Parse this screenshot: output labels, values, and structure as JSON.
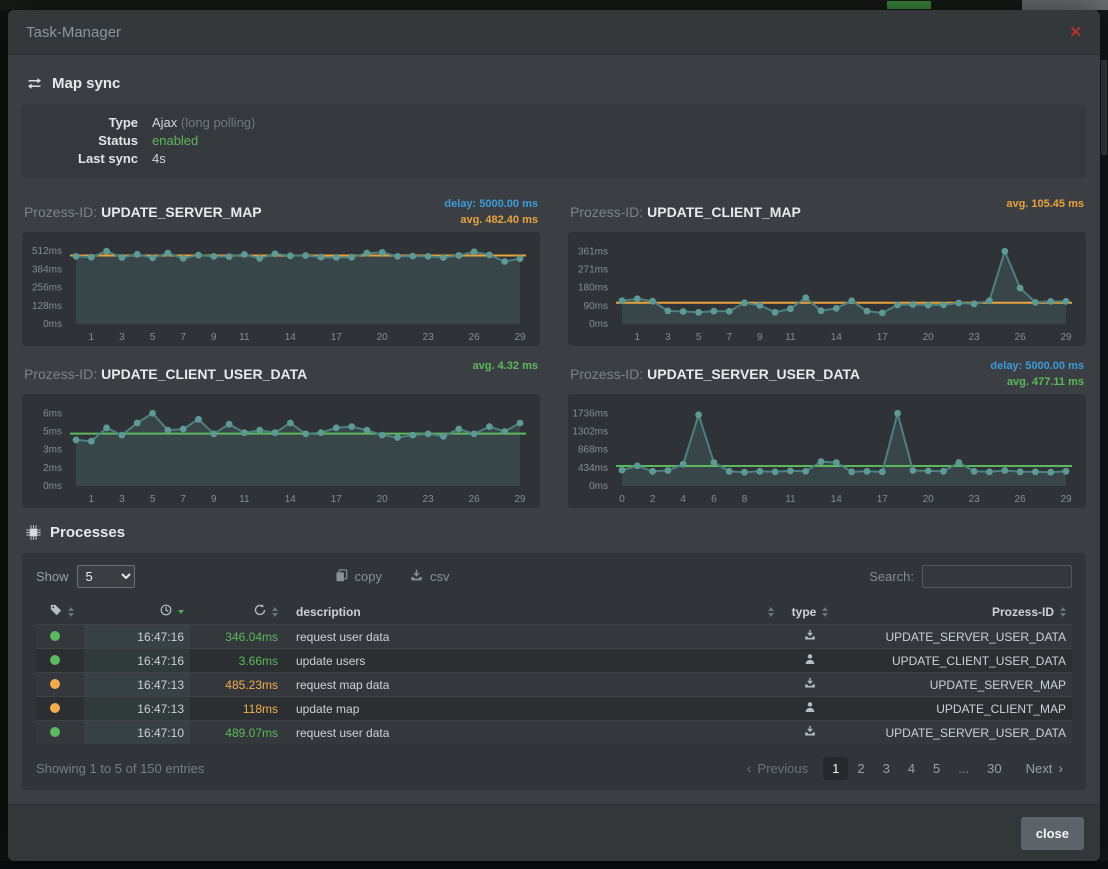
{
  "modal": {
    "title": "Task-Manager",
    "close_icon": "✕",
    "footer_close_label": "close"
  },
  "map_sync": {
    "heading": "Map sync",
    "type_label": "Type",
    "type_value": "Ajax",
    "type_note": "(long polling)",
    "status_label": "Status",
    "status_value": "enabled",
    "last_sync_label": "Last sync",
    "last_sync_value": "4s"
  },
  "chart_data": [
    {
      "type": "area",
      "title_prefix": "Prozess-ID:",
      "title": "UPDATE_SERVER_MAP",
      "delay_label": "delay: 5000.00 ms",
      "avg_label": "avg. 482.40 ms",
      "avg_value": 482.4,
      "avg_color": "#e8a33d",
      "ylim": [
        0,
        563
      ],
      "yticks": [
        {
          "v": 0,
          "label": "0ms"
        },
        {
          "v": 128,
          "label": "128ms"
        },
        {
          "v": 256,
          "label": "256ms"
        },
        {
          "v": 384,
          "label": "384ms"
        },
        {
          "v": 512,
          "label": "512ms"
        }
      ],
      "xticks": [
        1,
        3,
        5,
        7,
        9,
        11,
        14,
        17,
        20,
        23,
        26,
        29
      ],
      "values": [
        476,
        470,
        512,
        468,
        490,
        466,
        498,
        462,
        484,
        476,
        474,
        490,
        462,
        494,
        480,
        482,
        470,
        468,
        470,
        498,
        504,
        476,
        478,
        476,
        468,
        482,
        508,
        486,
        440,
        460
      ]
    },
    {
      "type": "area",
      "title_prefix": "Prozess-ID:",
      "title": "UPDATE_CLIENT_MAP",
      "delay_label": "",
      "avg_label": "avg. 105.45 ms",
      "avg_value": 105.45,
      "avg_color": "#e8a33d",
      "ylim": [
        0,
        397
      ],
      "yticks": [
        {
          "v": 0,
          "label": "0ms"
        },
        {
          "v": 90,
          "label": "90ms"
        },
        {
          "v": 180,
          "label": "180ms"
        },
        {
          "v": 271,
          "label": "271ms"
        },
        {
          "v": 361,
          "label": "361ms"
        }
      ],
      "xticks": [
        1,
        3,
        5,
        7,
        9,
        11,
        14,
        17,
        20,
        23,
        26,
        29
      ],
      "values": [
        115,
        125,
        113,
        65,
        62,
        58,
        64,
        63,
        105,
        93,
        58,
        76,
        130,
        66,
        78,
        115,
        64,
        55,
        95,
        97,
        94,
        95,
        104,
        100,
        115,
        361,
        178,
        107,
        112,
        112
      ]
    },
    {
      "type": "area",
      "title_prefix": "Prozess-ID:",
      "title": "UPDATE_CLIENT_USER_DATA",
      "delay_label": "",
      "avg_label": "avg. 4.32 ms",
      "avg_value": 4.32,
      "avg_color": "#5cb85c",
      "ylim": [
        0,
        6.6
      ],
      "yticks": [
        {
          "v": 0,
          "label": "0ms"
        },
        {
          "v": 1.5,
          "label": "2ms"
        },
        {
          "v": 3,
          "label": "3ms"
        },
        {
          "v": 4.5,
          "label": "5ms"
        },
        {
          "v": 6,
          "label": "6ms"
        }
      ],
      "xticks": [
        1,
        3,
        5,
        7,
        9,
        11,
        14,
        17,
        20,
        23,
        26,
        29
      ],
      "values": [
        3.8,
        3.7,
        4.8,
        4.2,
        5.2,
        6.0,
        4.6,
        4.7,
        5.5,
        4.3,
        5.1,
        4.4,
        4.6,
        4.4,
        5.2,
        4.3,
        4.4,
        4.8,
        4.9,
        4.6,
        4.2,
        4.0,
        4.2,
        4.3,
        4.1,
        4.7,
        4.3,
        4.9,
        4.5,
        5.2
      ]
    },
    {
      "type": "area",
      "title_prefix": "Prozess-ID:",
      "title": "UPDATE_SERVER_USER_DATA",
      "delay_label": "delay: 5000.00 ms",
      "avg_label": "avg. 477.11 ms",
      "avg_value": 477.11,
      "avg_color": "#5cb85c",
      "ylim": [
        0,
        1910
      ],
      "yticks": [
        {
          "v": 0,
          "label": "0ms"
        },
        {
          "v": 434,
          "label": "434ms"
        },
        {
          "v": 868,
          "label": "868ms"
        },
        {
          "v": 1302,
          "label": "1302ms"
        },
        {
          "v": 1736,
          "label": "1736ms"
        }
      ],
      "xticks": [
        0,
        2,
        4,
        6,
        8,
        11,
        14,
        17,
        20,
        23,
        26,
        29
      ],
      "values": [
        380,
        480,
        350,
        370,
        520,
        1700,
        560,
        350,
        330,
        350,
        340,
        360,
        350,
        580,
        560,
        340,
        350,
        340,
        1736,
        370,
        360,
        350,
        560,
        350,
        340,
        370,
        340,
        340,
        330,
        350
      ]
    }
  ],
  "processes": {
    "heading": "Processes",
    "show_label": "Show",
    "show_options": [
      "5"
    ],
    "copy_label": "copy",
    "csv_label": "csv",
    "search_label": "Search:",
    "search_value": "",
    "columns": {
      "description": "description",
      "type": "type",
      "process_id": "Prozess-ID"
    },
    "rows": [
      {
        "status_color": "green",
        "time": "16:47:16",
        "duration": "346.04ms",
        "duration_color": "green",
        "description": "request user data",
        "type": "server",
        "process_id": "UPDATE_SERVER_USER_DATA"
      },
      {
        "status_color": "green",
        "time": "16:47:16",
        "duration": "3.66ms",
        "duration_color": "green",
        "description": "update users",
        "type": "client",
        "process_id": "UPDATE_CLIENT_USER_DATA"
      },
      {
        "status_color": "orange",
        "time": "16:47:13",
        "duration": "485.23ms",
        "duration_color": "orange",
        "description": "request map data",
        "type": "server",
        "process_id": "UPDATE_SERVER_MAP"
      },
      {
        "status_color": "orange",
        "time": "16:47:13",
        "duration": "118ms",
        "duration_color": "orange",
        "description": "update map",
        "type": "client",
        "process_id": "UPDATE_CLIENT_MAP"
      },
      {
        "status_color": "green",
        "time": "16:47:10",
        "duration": "489.07ms",
        "duration_color": "green",
        "description": "request user data",
        "type": "server",
        "process_id": "UPDATE_SERVER_USER_DATA"
      }
    ],
    "summary": "Showing 1 to 5 of 150 entries",
    "pagination": {
      "previous": "Previous",
      "next": "Next",
      "prev_icon": "‹",
      "next_icon": "›",
      "pages": [
        "1",
        "2",
        "3",
        "4",
        "5",
        "...",
        "30"
      ],
      "active": "1"
    }
  },
  "colors": {
    "green": "#5cb85c",
    "orange": "#f0ad4e",
    "blue": "#3d9bd9",
    "teal_dot": "#5d9a96",
    "teal_line": "#4e807d",
    "red": "#b5342c"
  }
}
